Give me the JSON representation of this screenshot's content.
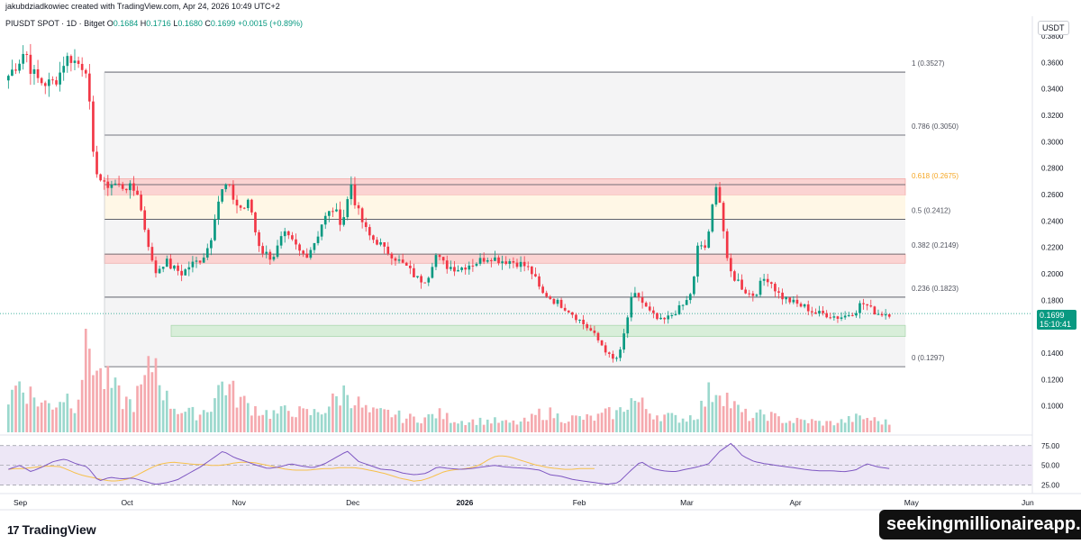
{
  "header": {
    "created_by": "jakubdziadkowiec created with TradingView.com, Apr 24, 2026 10:49 UTC+2"
  },
  "symbol_info": {
    "symbol": "PIUSDT SPOT · 1D · Bitget",
    "open_label": "O",
    "open": "0.1684",
    "high_label": "H",
    "high": "0.1716",
    "low_label": "L",
    "low": "0.1680",
    "close_label": "C",
    "close": "0.1699",
    "change": "+0.0015 (+0.89%)"
  },
  "currency": "USDT",
  "last_price": {
    "value": "0.1699",
    "countdown": "15:10:41"
  },
  "branding": {
    "logo_text": "TradingView",
    "logo_mark": "17"
  },
  "watermark": "seekingmillionaireapp.com",
  "colors": {
    "up": "#089981",
    "down": "#f23645",
    "rsi_line": "#7e57c2",
    "rsi_ma": "#f7c04a",
    "fib_line": "#787b86",
    "fib_618": "#f5a623",
    "zone_red": "#fbd3d2",
    "zone_green": "#d8eed9",
    "zone_cream": "#fff7e6",
    "rsi_band": "#ede7f6"
  },
  "chart_data": {
    "type": "candlestick",
    "y_axis": {
      "ylim": [
        0.08,
        0.395
      ],
      "tick_labels": [
        "0.3800",
        "0.3600",
        "0.3400",
        "0.3200",
        "0.3000",
        "0.2800",
        "0.2600",
        "0.2400",
        "0.2200",
        "0.2000",
        "0.1800",
        "0.1600",
        "0.1400",
        "0.1200",
        "0.1000"
      ],
      "tick_values": [
        0.38,
        0.36,
        0.34,
        0.32,
        0.3,
        0.28,
        0.26,
        0.24,
        0.22,
        0.2,
        0.18,
        0.16,
        0.14,
        0.12,
        0.1
      ]
    },
    "x_axis": {
      "labels": [
        "Sep",
        "Oct",
        "Nov",
        "Dec",
        "2026",
        "Feb",
        "Mar",
        "Apr",
        "May",
        "Jun"
      ],
      "label_days": [
        0,
        122,
        248,
        377,
        502,
        634,
        756,
        880,
        1010,
        1143
      ]
    },
    "fibonacci": [
      {
        "label": "1 (0.3527)",
        "value": 0.3527
      },
      {
        "label": "0.786 (0.3050)",
        "value": 0.305
      },
      {
        "label": "0.618 (0.2675)",
        "value": 0.2675
      },
      {
        "label": "0.5 (0.2412)",
        "value": 0.2412
      },
      {
        "label": "0.382 (0.2149)",
        "value": 0.2149
      },
      {
        "label": "0.236 (0.1823)",
        "value": 0.1823
      },
      {
        "label": "0 (0.1297)",
        "value": 0.1297
      }
    ],
    "zones": [
      {
        "kind": "red",
        "from": 0.2595,
        "to": 0.272
      },
      {
        "kind": "cream",
        "from": 0.2412,
        "to": 0.2595
      },
      {
        "kind": "red",
        "from": 0.208,
        "to": 0.2149
      },
      {
        "kind": "green",
        "from": 0.1525,
        "to": 0.161
      }
    ],
    "close_path": [
      [
        0.35,
        0.356
      ],
      [
        0.362,
        0.37
      ],
      [
        0.355,
        0.348
      ],
      [
        0.345,
        0.344
      ],
      [
        0.345,
        0.35
      ],
      [
        0.362,
        0.364
      ],
      [
        0.36,
        0.358
      ],
      [
        0.356,
        0.29
      ],
      [
        0.275,
        0.266
      ],
      [
        0.268,
        0.268
      ],
      [
        0.266,
        0.266
      ],
      [
        0.264,
        0.262
      ],
      [
        0.24,
        0.222
      ],
      [
        0.2,
        0.205
      ],
      [
        0.21,
        0.205
      ],
      [
        0.203,
        0.2
      ],
      [
        0.205,
        0.208
      ],
      [
        0.21,
        0.215
      ],
      [
        0.225,
        0.25
      ],
      [
        0.262,
        0.268
      ],
      [
        0.258,
        0.25
      ],
      [
        0.25,
        0.255
      ],
      [
        0.232,
        0.218
      ],
      [
        0.215,
        0.212
      ],
      [
        0.22,
        0.23
      ],
      [
        0.226,
        0.222
      ],
      [
        0.216,
        0.214
      ],
      [
        0.22,
        0.228
      ],
      [
        0.24,
        0.245
      ],
      [
        0.25,
        0.24
      ],
      [
        0.245,
        0.27
      ],
      [
        0.25,
        0.24
      ],
      [
        0.23,
        0.226
      ],
      [
        0.224,
        0.218
      ],
      [
        0.216,
        0.212
      ],
      [
        0.208,
        0.205
      ],
      [
        0.2,
        0.196
      ],
      [
        0.195,
        0.2
      ],
      [
        0.215,
        0.21
      ],
      [
        0.206,
        0.205
      ],
      [
        0.204,
        0.205
      ],
      [
        0.207,
        0.208
      ],
      [
        0.21,
        0.212
      ],
      [
        0.213,
        0.211
      ],
      [
        0.21,
        0.21
      ],
      [
        0.209,
        0.208
      ],
      [
        0.206,
        0.203
      ],
      [
        0.195,
        0.185
      ],
      [
        0.184,
        0.18
      ],
      [
        0.178,
        0.175
      ],
      [
        0.172,
        0.168
      ],
      [
        0.164,
        0.16
      ],
      [
        0.156,
        0.15
      ],
      [
        0.145,
        0.138
      ],
      [
        0.134,
        0.14
      ],
      [
        0.16,
        0.18
      ],
      [
        0.185,
        0.178
      ],
      [
        0.172,
        0.168
      ],
      [
        0.164,
        0.165
      ],
      [
        0.168,
        0.172
      ],
      [
        0.175,
        0.18
      ],
      [
        0.19,
        0.225
      ],
      [
        0.218,
        0.232
      ],
      [
        0.272,
        0.25
      ],
      [
        0.21,
        0.198
      ],
      [
        0.195,
        0.188
      ],
      [
        0.185,
        0.184
      ],
      [
        0.192,
        0.198
      ],
      [
        0.193,
        0.186
      ],
      [
        0.182,
        0.18
      ],
      [
        0.178,
        0.176
      ],
      [
        0.175,
        0.172
      ],
      [
        0.17,
        0.17
      ],
      [
        0.169,
        0.168
      ],
      [
        0.167,
        0.168
      ],
      [
        0.17,
        0.172
      ],
      [
        0.178,
        0.176
      ],
      [
        0.172,
        0.17
      ],
      [
        0.1699,
        0.1699
      ]
    ],
    "volume_path": [
      0.35,
      0.55,
      0.4,
      0.3,
      0.3,
      0.4,
      0.3,
      1.0,
      0.6,
      0.5,
      0.35,
      0.3,
      0.5,
      0.8,
      0.35,
      0.25,
      0.2,
      0.2,
      0.3,
      0.55,
      0.4,
      0.3,
      0.25,
      0.2,
      0.2,
      0.25,
      0.2,
      0.2,
      0.25,
      0.35,
      0.45,
      0.3,
      0.2,
      0.2,
      0.2,
      0.15,
      0.15,
      0.15,
      0.2,
      0.15,
      0.12,
      0.12,
      0.12,
      0.12,
      0.1,
      0.1,
      0.12,
      0.2,
      0.2,
      0.15,
      0.15,
      0.15,
      0.15,
      0.2,
      0.2,
      0.35,
      0.3,
      0.2,
      0.18,
      0.15,
      0.15,
      0.2,
      0.4,
      0.5,
      0.3,
      0.2,
      0.15,
      0.2,
      0.15,
      0.12,
      0.12,
      0.12,
      0.1,
      0.1,
      0.12,
      0.15,
      0.15,
      0.12,
      0.1
    ],
    "rsi": {
      "levels": [
        75.0,
        50.0,
        25.0
      ],
      "level_labels": [
        "75.00",
        "50.00",
        "25.00"
      ],
      "path": [
        45,
        50,
        42,
        48,
        55,
        58,
        52,
        48,
        30,
        35,
        33,
        34,
        30,
        26,
        28,
        32,
        40,
        48,
        58,
        68,
        60,
        55,
        50,
        46,
        48,
        52,
        49,
        47,
        52,
        60,
        68,
        55,
        50,
        45,
        44,
        40,
        38,
        40,
        48,
        46,
        45,
        46,
        48,
        50,
        48,
        47,
        46,
        44,
        38,
        36,
        32,
        30,
        28,
        26,
        28,
        42,
        55,
        46,
        43,
        42,
        45,
        48,
        52,
        68,
        78,
        62,
        55,
        52,
        50,
        48,
        46,
        44,
        43,
        43,
        42,
        44,
        52,
        48,
        46
      ],
      "ma_path": [
        45,
        46,
        46,
        47,
        48,
        49,
        49,
        48,
        44,
        40,
        37,
        35,
        33,
        31,
        30,
        31,
        33,
        37,
        42,
        47,
        51,
        53,
        54,
        53,
        52,
        51,
        51,
        50,
        50,
        51,
        53,
        54,
        54,
        53,
        51,
        49,
        47,
        45,
        44,
        44,
        44,
        45,
        46,
        46,
        47,
        47,
        47,
        46,
        44,
        42,
        40,
        37,
        34,
        32,
        30,
        31,
        34,
        38,
        42,
        44,
        45,
        46,
        48,
        52,
        58,
        62,
        62,
        60,
        57,
        54,
        51,
        49,
        47,
        46,
        45,
        45,
        46,
        46,
        46
      ]
    }
  }
}
